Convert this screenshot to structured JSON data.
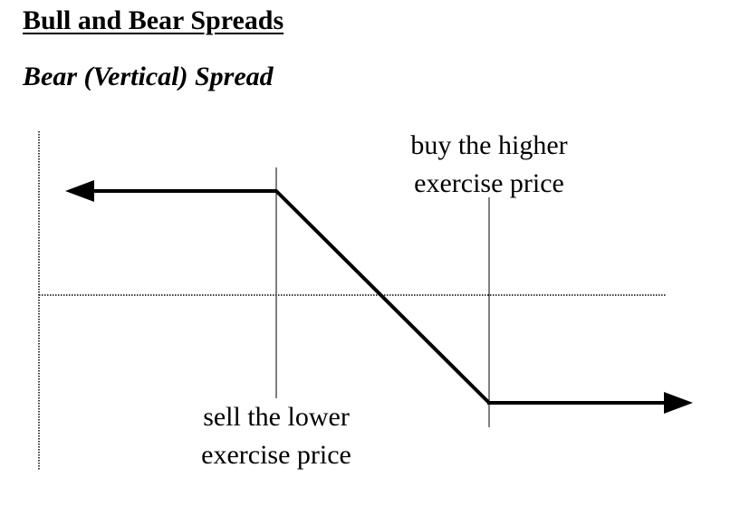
{
  "title": "Bull and Bear Spreads",
  "subtitle": "Bear (Vertical) Spread",
  "annotations": {
    "higher_strike": {
      "line1": "buy the higher",
      "line2": "exercise price"
    },
    "lower_strike": {
      "line1": "sell the lower",
      "line2": "exercise price"
    }
  },
  "colors": {
    "payoff_line": "#000000",
    "axes": "#000000",
    "background": "#ffffff"
  }
}
